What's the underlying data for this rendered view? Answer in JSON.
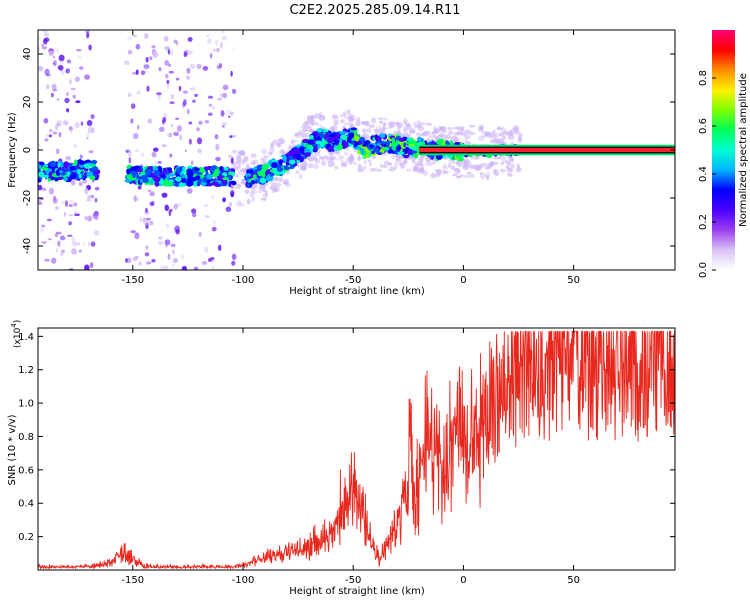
{
  "title": "C2E2.2025.285.09.14.R11",
  "chart_data": [
    {
      "type": "heatmap",
      "name": "spectrogram",
      "xlabel": "Height of straight line (km)",
      "ylabel": "Frequency (Hz)",
      "xlim": [
        -193,
        96
      ],
      "ylim": [
        -50,
        50
      ],
      "xticks": [
        -150,
        -100,
        -50,
        0,
        50
      ],
      "xtick_labels": [
        "-150",
        "-100",
        "-50",
        "0",
        "50"
      ],
      "yticks": [
        -40,
        -20,
        0,
        20,
        40
      ],
      "ytick_labels": [
        "-40",
        "-20",
        "0",
        "20",
        "40"
      ],
      "ridge": {
        "x": [
          -193,
          -180,
          -170,
          -160,
          -150,
          -140,
          -130,
          -120,
          -110,
          -100,
          -95,
          -90,
          -85,
          -80,
          -75,
          -70,
          -65,
          -60,
          -55,
          -50,
          -45,
          -40,
          -35,
          -30,
          -25,
          -20,
          -15,
          -10,
          -5,
          0,
          5,
          10,
          15,
          20,
          30,
          50,
          96
        ],
        "freq": [
          -9,
          -9,
          -8,
          -9,
          -10,
          -11,
          -11,
          -11,
          -11,
          -12,
          -11,
          -10,
          -7,
          -5,
          -2,
          2,
          5,
          3,
          4,
          6,
          0,
          2,
          3,
          2,
          1,
          1,
          0,
          0,
          0,
          -1,
          0,
          -1,
          0,
          0,
          0,
          0,
          0
        ]
      },
      "data_gaps_km": [
        [
          -166,
          -153
        ],
        [
          -104,
          -98
        ]
      ],
      "colorbar": {
        "label": "Normalized spectral amplitude",
        "range": [
          0.0,
          1.0
        ],
        "ticks": [
          0.0,
          0.2,
          0.4,
          0.6,
          0.8
        ],
        "tick_labels": [
          "0.0",
          "0.2",
          "0.4",
          "0.6",
          "0.8"
        ],
        "colors": [
          "#ffffff",
          "#d9c4f5",
          "#9b3df0",
          "#4a00ff",
          "#0000ff",
          "#00b4ff",
          "#00ffd2",
          "#00ff5a",
          "#7dff00",
          "#fff000",
          "#ff8c00",
          "#ff0000",
          "#ff0078"
        ]
      }
    },
    {
      "type": "line",
      "name": "snr",
      "xlabel": "Height of straight line (km)",
      "ylabel": "SNR (10 * v/v)",
      "scale_label": "(x10",
      "scale_exponent": "4",
      "xlim": [
        -193,
        96
      ],
      "ylim": [
        0,
        1.45
      ],
      "xticks": [
        -150,
        -100,
        -50,
        0,
        50
      ],
      "xtick_labels": [
        "-150",
        "-100",
        "-50",
        "0",
        "50"
      ],
      "yticks": [
        0.2,
        0.4,
        0.6,
        0.8,
        1.0,
        1.2,
        1.4
      ],
      "ytick_labels": [
        "0.2",
        "0.4",
        "0.6",
        "0.8",
        "1.0",
        "1.2",
        "1.4"
      ],
      "color": "#e8281e",
      "series": {
        "x": [
          -193,
          -170,
          -160,
          -155,
          -150,
          -145,
          -140,
          -120,
          -105,
          -100,
          -95,
          -90,
          -85,
          -80,
          -75,
          -70,
          -65,
          -60,
          -58,
          -55,
          -50,
          -47,
          -45,
          -43,
          -40,
          -38,
          -35,
          -33,
          -30,
          -28,
          -26,
          -25,
          -24,
          -22,
          -20,
          -18,
          -16,
          -15,
          -14,
          -12,
          -10,
          -8,
          -6,
          -5,
          -3,
          0,
          3,
          5,
          8,
          10,
          12,
          14,
          16,
          18,
          20,
          22,
          25,
          28,
          30,
          35,
          40,
          50,
          60,
          70,
          80,
          90,
          96
        ],
        "y": [
          0.02,
          0.02,
          0.05,
          0.12,
          0.08,
          0.03,
          0.02,
          0.02,
          0.02,
          0.03,
          0.06,
          0.08,
          0.1,
          0.12,
          0.14,
          0.18,
          0.2,
          0.22,
          0.3,
          0.45,
          0.55,
          0.45,
          0.35,
          0.25,
          0.12,
          0.08,
          0.15,
          0.2,
          0.3,
          0.4,
          0.55,
          0.65,
          0.8,
          0.5,
          0.6,
          0.75,
          0.95,
          1.05,
          0.8,
          0.7,
          0.65,
          0.7,
          0.8,
          0.85,
          0.9,
          0.95,
          0.92,
          0.9,
          0.95,
          1.05,
          1.0,
          1.08,
          1.12,
          1.15,
          1.18,
          1.25,
          1.3,
          1.33,
          1.35,
          1.37,
          1.37,
          1.38,
          1.38,
          1.37,
          1.37,
          1.38,
          1.36
        ]
      }
    }
  ]
}
